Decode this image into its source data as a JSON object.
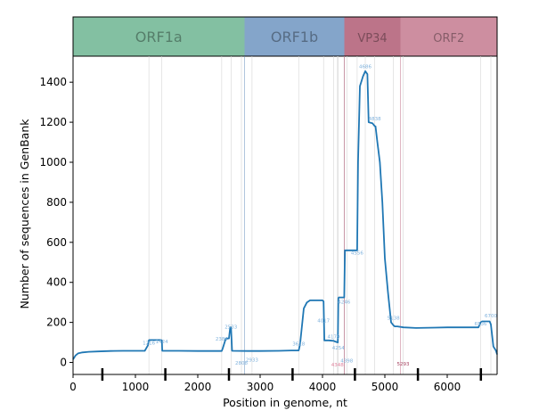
{
  "chart_data": {
    "type": "line",
    "xlabel": "Position in genome, nt",
    "ylabel": "Number of sequences in GenBank",
    "xlim": [
      0,
      6800
    ],
    "ylim": [
      -60,
      1530
    ],
    "x_ticks": [
      0,
      1000,
      2000,
      3000,
      4000,
      5000,
      6000
    ],
    "y_ticks": [
      0,
      200,
      400,
      600,
      800,
      1000,
      1200,
      1400
    ],
    "grid": false,
    "regions": [
      {
        "label": "ORF1a",
        "start": 0,
        "end": 2750,
        "color": "#5aab83"
      },
      {
        "label": "ORF1b",
        "start": 2750,
        "end": 4350,
        "color": "#5b87b8"
      },
      {
        "label": "VP34",
        "start": 4350,
        "end": 5250,
        "color": "#a64562"
      },
      {
        "label": "ORF2",
        "start": 5250,
        "end": 6800,
        "color": "#bc6880"
      }
    ],
    "boundary_ticks": [
      470,
      1480,
      2500,
      3520,
      4520,
      5530,
      6540
    ],
    "annotations": [
      {
        "text": "1216",
        "x": 1216,
        "y": 90,
        "color": "#7fb2dd"
      },
      {
        "text": "1424",
        "x": 1424,
        "y": 95,
        "color": "#7fb2dd"
      },
      {
        "text": "2384",
        "x": 2384,
        "y": 110,
        "color": "#7fb2dd"
      },
      {
        "text": "2533",
        "x": 2533,
        "y": 170,
        "color": "#7fb2dd"
      },
      {
        "text": "2808",
        "x": 2700,
        "y": -10,
        "color": "#7fb2dd"
      },
      {
        "text": "2933",
        "x": 2870,
        "y": 5,
        "color": "#7fb2dd"
      },
      {
        "text": "3618",
        "x": 3618,
        "y": 85,
        "color": "#7fb2dd"
      },
      {
        "text": "4017",
        "x": 4017,
        "y": 200,
        "color": "#7fb2dd"
      },
      {
        "text": "4179",
        "x": 4179,
        "y": 120,
        "color": "#7fb2dd"
      },
      {
        "text": "4254",
        "x": 4254,
        "y": 65,
        "color": "#7fb2dd"
      },
      {
        "text": "4246",
        "x": 4346,
        "y": 295,
        "color": "#7fb2dd"
      },
      {
        "text": "4348",
        "x": 4240,
        "y": -20,
        "color": "#e2849e"
      },
      {
        "text": "4398",
        "x": 4390,
        "y": 0,
        "color": "#7fb2dd"
      },
      {
        "text": "4556",
        "x": 4556,
        "y": 540,
        "color": "#7fb2dd"
      },
      {
        "text": "4686",
        "x": 4686,
        "y": 1470,
        "color": "#7fb2dd"
      },
      {
        "text": "4838",
        "x": 4838,
        "y": 1210,
        "color": "#7fb2dd"
      },
      {
        "text": "5138",
        "x": 5138,
        "y": 215,
        "color": "#7fb2dd"
      },
      {
        "text": "5293",
        "x": 5293,
        "y": -15,
        "color": "#a64562"
      },
      {
        "text": "6536",
        "x": 6536,
        "y": 185,
        "color": "#7fb2dd"
      },
      {
        "text": "6700",
        "x": 6700,
        "y": 225,
        "color": "#7fb2dd"
      }
    ],
    "series": [
      {
        "color": "#1f77b4",
        "x": [
          0,
          40,
          80,
          150,
          250,
          400,
          600,
          800,
          1000,
          1150,
          1200,
          1216,
          1220,
          1400,
          1424,
          1430,
          1700,
          2000,
          2300,
          2384,
          2400,
          2450,
          2500,
          2520,
          2533,
          2550,
          2800,
          3000,
          3300,
          3500,
          3618,
          3640,
          3700,
          3750,
          3800,
          4000,
          4017,
          4030,
          4100,
          4179,
          4200,
          4246,
          4254,
          4260,
          4300,
          4348,
          4360,
          4380,
          4398,
          4410,
          4500,
          4556,
          4570,
          4600,
          4650,
          4686,
          4720,
          4740,
          4800,
          4838,
          4850,
          4880,
          4920,
          4960,
          5000,
          5050,
          5100,
          5138,
          5160,
          5200,
          5300,
          5500,
          5800,
          6000,
          6300,
          6500,
          6536,
          6560,
          6680,
          6700,
          6740,
          6780,
          6800
        ],
        "y": [
          15,
          35,
          45,
          50,
          53,
          55,
          57,
          58,
          58,
          58,
          85,
          110,
          112,
          112,
          110,
          58,
          58,
          57,
          57,
          57,
          70,
          120,
          120,
          175,
          175,
          58,
          57,
          57,
          58,
          60,
          60,
          90,
          270,
          300,
          310,
          310,
          305,
          110,
          110,
          108,
          105,
          100,
          320,
          325,
          325,
          325,
          560,
          560,
          560,
          560,
          560,
          560,
          1000,
          1380,
          1430,
          1455,
          1440,
          1200,
          1195,
          1180,
          1180,
          1100,
          1000,
          800,
          520,
          350,
          200,
          185,
          180,
          180,
          175,
          172,
          174,
          175,
          175,
          175,
          200,
          205,
          205,
          190,
          80,
          60,
          40
        ]
      }
    ]
  }
}
